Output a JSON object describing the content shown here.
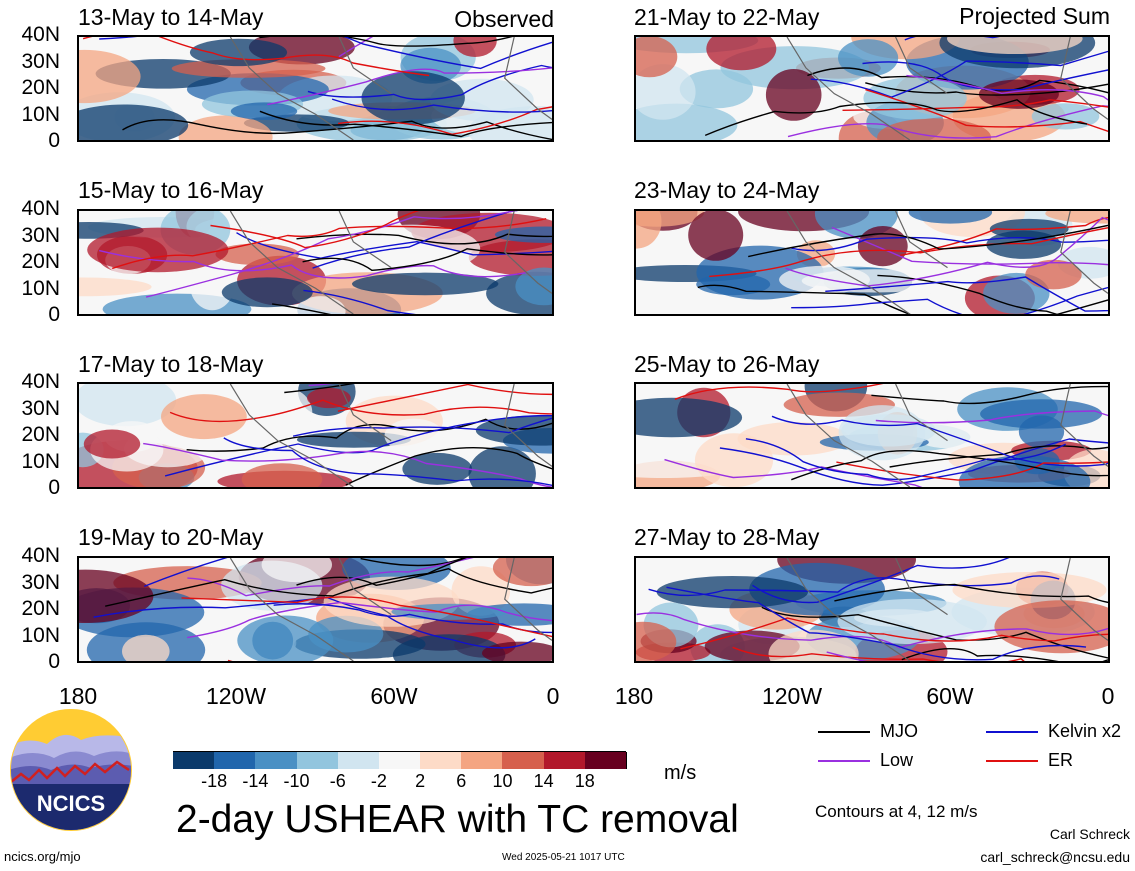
{
  "header": {
    "left_label": "Observed",
    "right_label": "Projected Sum"
  },
  "panels": [
    {
      "title": "13-May to 14-May",
      "column": "left"
    },
    {
      "title": "15-May to 16-May",
      "column": "left"
    },
    {
      "title": "17-May to 18-May",
      "column": "left"
    },
    {
      "title": "19-May to 20-May",
      "column": "left"
    },
    {
      "title": "21-May to 22-May",
      "column": "right"
    },
    {
      "title": "23-May to 24-May",
      "column": "right"
    },
    {
      "title": "25-May to 26-May",
      "column": "right"
    },
    {
      "title": "27-May to 28-May",
      "column": "right"
    }
  ],
  "axes": {
    "lat_ticks": [
      "40N",
      "30N",
      "20N",
      "10N",
      "0"
    ],
    "lon_ticks": [
      "180",
      "120W",
      "60W",
      "0"
    ]
  },
  "colorbar": {
    "unit": "m/s",
    "tick_labels": [
      "-18",
      "-14",
      "-10",
      "-6",
      "-2",
      "2",
      "6",
      "10",
      "14",
      "18"
    ],
    "colors": [
      "#0b3a6b",
      "#2166ac",
      "#4a90c4",
      "#92c5de",
      "#d1e5f0",
      "#f7f7f7",
      "#fddbc7",
      "#f4a582",
      "#d6604d",
      "#b2182b",
      "#67001f"
    ]
  },
  "legend": {
    "items": [
      {
        "label": "MJO",
        "color": "#000000"
      },
      {
        "label": "Kelvin x2",
        "color": "#1010d0"
      },
      {
        "label": "Low",
        "color": "#9a30e0"
      },
      {
        "label": "ER",
        "color": "#e01010"
      }
    ],
    "contours_note": "Contours at 4, 12 m/s"
  },
  "footer": {
    "main_title": "2-day USHEAR with TC removal",
    "site": "ncics.org/mjo",
    "timestamp": "Wed 2025-05-21 1017 UTC",
    "author": "Carl Schreck",
    "email": "carl_schreck@ncsu.edu",
    "logo_text": "NCICS"
  }
}
